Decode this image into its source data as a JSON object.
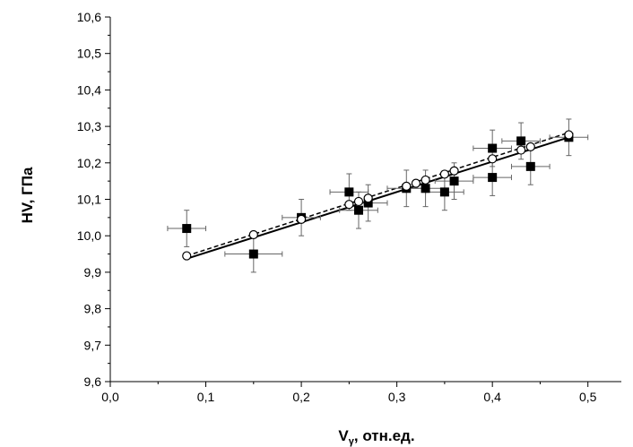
{
  "chart_data": {
    "type": "scatter",
    "xlabel": "V",
    "xlabel_subscript": "γ",
    "xlabel_suffix": ", отн.ед.",
    "ylabel": "HV, ГПа",
    "xlim": [
      0.0,
      0.535
    ],
    "ylim": [
      9.6,
      10.6
    ],
    "x_ticks": [
      "0,0",
      "0,1",
      "0,2",
      "0,3",
      "0,4",
      "0,5"
    ],
    "x_tick_values": [
      0.0,
      0.1,
      0.2,
      0.3,
      0.4,
      0.5
    ],
    "y_ticks": [
      "9,6",
      "9,7",
      "9,8",
      "9,9",
      "10,0",
      "10,1",
      "10,2",
      "10,3",
      "10,4",
      "10,5",
      "10,6"
    ],
    "y_tick_values": [
      9.6,
      9.7,
      9.8,
      9.9,
      10.0,
      10.1,
      10.2,
      10.3,
      10.4,
      10.5,
      10.6
    ],
    "grid": false,
    "legend": "none",
    "series": [
      {
        "marker": "filled-square",
        "color": "#000000",
        "points": [
          {
            "x": 0.08,
            "y": 10.02,
            "xerr": 0.02,
            "yerr": 0.05
          },
          {
            "x": 0.15,
            "y": 9.95,
            "xerr": 0.03,
            "yerr": 0.05
          },
          {
            "x": 0.2,
            "y": 10.05,
            "xerr": 0.02,
            "yerr": 0.05
          },
          {
            "x": 0.25,
            "y": 10.12,
            "xerr": 0.02,
            "yerr": 0.05
          },
          {
            "x": 0.26,
            "y": 10.07,
            "xerr": 0.02,
            "yerr": 0.05
          },
          {
            "x": 0.27,
            "y": 10.09,
            "xerr": 0.02,
            "yerr": 0.05
          },
          {
            "x": 0.31,
            "y": 10.13,
            "xerr": 0.02,
            "yerr": 0.05
          },
          {
            "x": 0.33,
            "y": 10.13,
            "xerr": 0.02,
            "yerr": 0.05
          },
          {
            "x": 0.35,
            "y": 10.12,
            "xerr": 0.02,
            "yerr": 0.05
          },
          {
            "x": 0.36,
            "y": 10.15,
            "xerr": 0.02,
            "yerr": 0.05
          },
          {
            "x": 0.4,
            "y": 10.24,
            "xerr": 0.02,
            "yerr": 0.05
          },
          {
            "x": 0.4,
            "y": 10.16,
            "xerr": 0.02,
            "yerr": 0.05
          },
          {
            "x": 0.43,
            "y": 10.26,
            "xerr": 0.02,
            "yerr": 0.05
          },
          {
            "x": 0.44,
            "y": 10.19,
            "xerr": 0.02,
            "yerr": 0.05
          },
          {
            "x": 0.48,
            "y": 10.27,
            "xerr": 0.02,
            "yerr": 0.05
          }
        ]
      },
      {
        "marker": "open-circle",
        "color": "#000000",
        "points": [
          {
            "x": 0.08,
            "y": 9.945
          },
          {
            "x": 0.15,
            "y": 10.003
          },
          {
            "x": 0.2,
            "y": 10.045
          },
          {
            "x": 0.25,
            "y": 10.086
          },
          {
            "x": 0.26,
            "y": 10.094
          },
          {
            "x": 0.27,
            "y": 10.103
          },
          {
            "x": 0.31,
            "y": 10.136
          },
          {
            "x": 0.32,
            "y": 10.144
          },
          {
            "x": 0.33,
            "y": 10.153
          },
          {
            "x": 0.35,
            "y": 10.169
          },
          {
            "x": 0.36,
            "y": 10.178
          },
          {
            "x": 0.4,
            "y": 10.211
          },
          {
            "x": 0.43,
            "y": 10.235
          },
          {
            "x": 0.44,
            "y": 10.244
          },
          {
            "x": 0.48,
            "y": 10.277
          }
        ]
      }
    ],
    "lines": [
      {
        "style": "solid",
        "x": [
          0.08,
          0.48
        ],
        "y": [
          9.937,
          10.27
        ]
      },
      {
        "style": "dashed",
        "x": [
          0.08,
          0.48
        ],
        "y": [
          9.945,
          10.283
        ]
      }
    ]
  }
}
